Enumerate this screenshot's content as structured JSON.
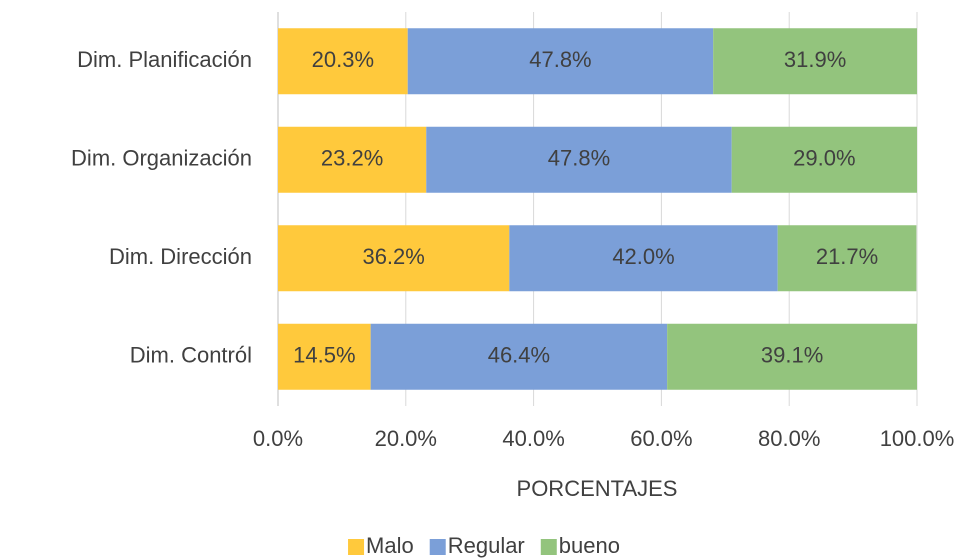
{
  "chart_data": {
    "type": "stacked-bar-horizontal",
    "categories": [
      "Dim. Planificación",
      "Dim. Organización",
      "Dim. Dirección",
      "Dim. Contról"
    ],
    "series": [
      {
        "name": "Malo",
        "color": "#FFC93C",
        "values": [
          20.3,
          23.2,
          36.2,
          14.5
        ],
        "value_labels": [
          "20.3%",
          "23.2%",
          "36.2%",
          "14.5%"
        ]
      },
      {
        "name": "Regular",
        "color": "#7B9FD8",
        "values": [
          47.8,
          47.8,
          42.0,
          46.4
        ],
        "value_labels": [
          "47.8%",
          "47.8%",
          "42.0%",
          "46.4%"
        ]
      },
      {
        "name": "bueno",
        "color": "#93C47D",
        "values": [
          31.9,
          29.0,
          21.7,
          39.1
        ],
        "value_labels": [
          "31.9%",
          "29.0%",
          "21.7%",
          "39.1%"
        ]
      }
    ],
    "xlabel": "PORCENTAJES",
    "xlim": [
      0,
      100
    ],
    "xticks": [
      {
        "value": 0,
        "label": "0.0%"
      },
      {
        "value": 20,
        "label": "20.0%"
      },
      {
        "value": 40,
        "label": "40.0%"
      },
      {
        "value": 60,
        "label": "60.0%"
      },
      {
        "value": 80,
        "label": "80.0%"
      },
      {
        "value": 100,
        "label": "100.0%"
      }
    ],
    "grid": true,
    "legend": "bottom"
  }
}
